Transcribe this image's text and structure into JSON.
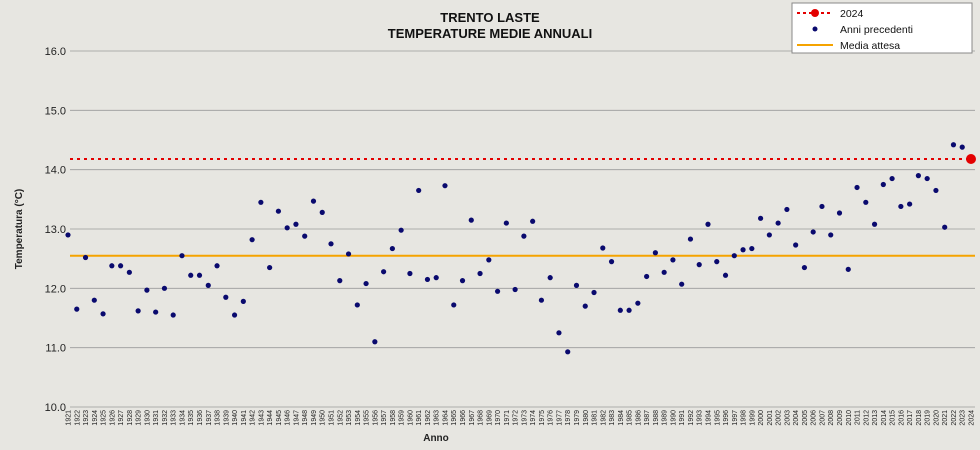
{
  "chart_data": {
    "type": "scatter",
    "title": "TRENTO LASTE",
    "subtitle": "TEMPERATURE MEDIE ANNUALI",
    "xlabel": "Anno",
    "ylabel": "Temperatura (°C)",
    "ylim": [
      10.0,
      16.0
    ],
    "yticks": [
      "10.0",
      "11.0",
      "12.0",
      "13.0",
      "14.0",
      "15.0",
      "16.0"
    ],
    "x_range": [
      1921,
      2024
    ],
    "grid": "horizontal",
    "legend_position": "top-right",
    "colors": {
      "current": "#e30000",
      "previous": "#0a0a6e",
      "mean": "#f5a300",
      "grid": "#9a9a9a"
    },
    "legend": {
      "current": "2024",
      "previous": "Anni precedenti",
      "mean": "Media attesa"
    },
    "current_year": {
      "x": 2024,
      "y": 14.18
    },
    "mean_expected": 12.55,
    "series": [
      {
        "name": "Anni precedenti",
        "x": [
          1921,
          1922,
          1923,
          1924,
          1925,
          1926,
          1927,
          1928,
          1929,
          1930,
          1931,
          1932,
          1933,
          1934,
          1935,
          1936,
          1937,
          1938,
          1939,
          1940,
          1941,
          1942,
          1943,
          1944,
          1945,
          1946,
          1947,
          1948,
          1949,
          1950,
          1951,
          1952,
          1953,
          1954,
          1955,
          1956,
          1957,
          1958,
          1959,
          1960,
          1961,
          1962,
          1963,
          1964,
          1965,
          1966,
          1967,
          1968,
          1969,
          1970,
          1971,
          1972,
          1973,
          1974,
          1975,
          1976,
          1977,
          1978,
          1979,
          1980,
          1981,
          1982,
          1983,
          1984,
          1985,
          1986,
          1987,
          1988,
          1989,
          1990,
          1991,
          1992,
          1993,
          1994,
          1995,
          1996,
          1997,
          1998,
          1999,
          2000,
          2001,
          2002,
          2003,
          2004,
          2005,
          2006,
          2007,
          2008,
          2009,
          2010,
          2011,
          2012,
          2013,
          2014,
          2015,
          2016,
          2017,
          2018,
          2019,
          2020,
          2021,
          2022,
          2023
        ],
        "y": [
          12.9,
          11.65,
          12.52,
          11.8,
          11.57,
          12.38,
          12.38,
          12.27,
          11.62,
          11.97,
          11.6,
          12.0,
          11.55,
          12.55,
          12.22,
          12.22,
          12.05,
          12.38,
          11.85,
          11.55,
          11.78,
          12.82,
          13.45,
          12.35,
          13.3,
          13.02,
          13.08,
          12.88,
          13.47,
          13.28,
          12.75,
          12.13,
          12.58,
          11.72,
          12.08,
          11.1,
          12.28,
          12.67,
          12.98,
          12.25,
          13.65,
          12.15,
          12.18,
          13.73,
          11.72,
          12.13,
          13.15,
          12.25,
          12.48,
          11.95,
          13.1,
          11.98,
          12.88,
          13.13,
          11.8,
          12.18,
          11.25,
          10.93,
          12.05,
          11.7,
          11.93,
          12.68,
          12.45,
          11.63,
          11.63,
          11.75,
          12.2,
          12.6,
          12.27,
          12.48,
          12.07,
          12.83,
          12.4,
          13.08,
          12.45,
          12.22,
          12.55,
          12.65,
          12.67,
          13.18,
          12.9,
          13.1,
          13.33,
          12.73,
          12.35,
          12.95,
          13.38,
          12.9,
          13.27,
          12.32,
          13.7,
          13.45,
          13.08,
          13.75,
          13.85,
          13.38,
          13.42,
          13.9,
          13.85,
          13.65,
          13.03,
          14.42,
          14.38
        ]
      }
    ]
  }
}
